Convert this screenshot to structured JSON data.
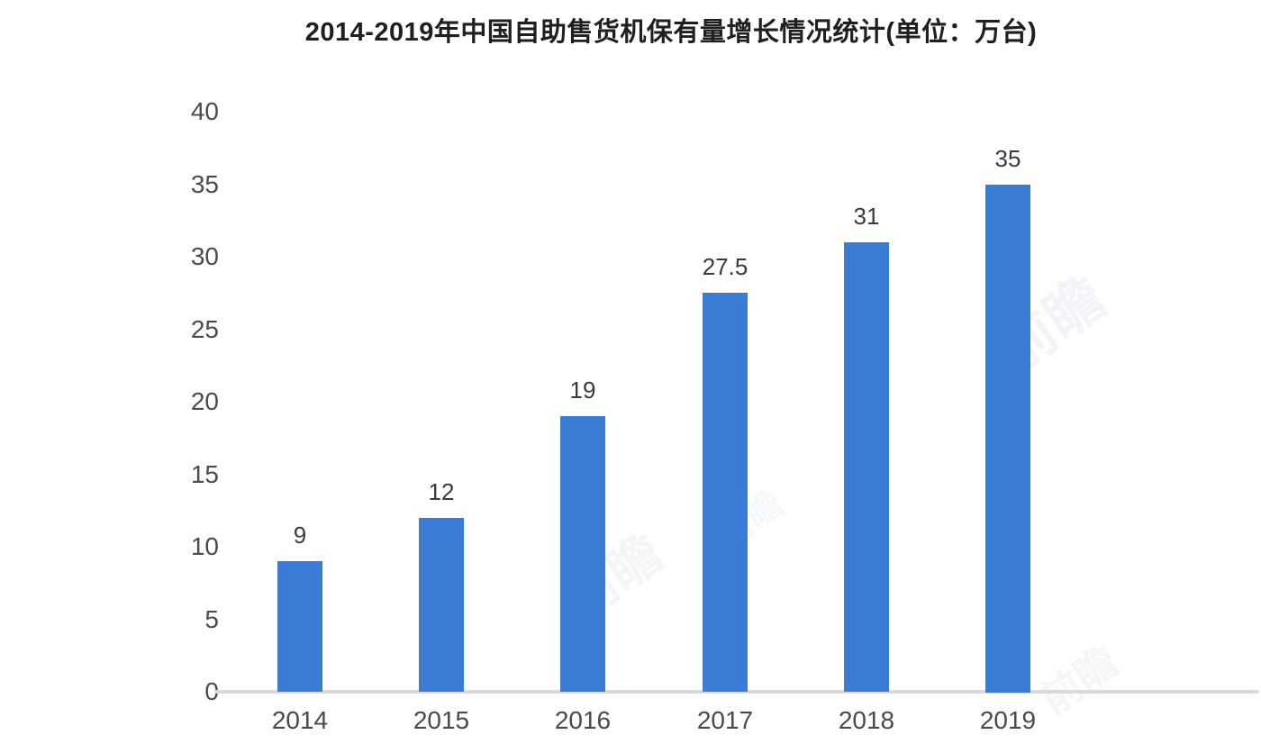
{
  "title": "2014-2019年中国自助售货机保有量增长情况统计(单位：万台)",
  "chart_data": {
    "type": "bar",
    "title": "2014-2019年中国自助售货机保有量增长情况统计(单位：万台)",
    "categories": [
      "2014",
      "2015",
      "2016",
      "2017",
      "2018",
      "2019"
    ],
    "values": [
      9,
      12,
      19,
      27.5,
      31,
      35
    ],
    "value_labels": [
      "9",
      "12",
      "19",
      "27.5",
      "31",
      "35"
    ],
    "xlabel": "",
    "ylabel": "",
    "ylim": [
      0,
      40
    ],
    "yticks": [
      0,
      5,
      10,
      15,
      20,
      25,
      30,
      35,
      40
    ],
    "grid": false,
    "legend": null,
    "bar_color": "#3b7cd6"
  },
  "colors": {
    "bar": "#3b7cd6",
    "axis_line": "#dadada",
    "title_text": "#1f1f1f",
    "tick_text": "#4a4a4a",
    "value_text": "#3a3a3a",
    "background": "#ffffff",
    "watermark": "#9fb0c6"
  },
  "watermark": {
    "text": "前瞻"
  }
}
